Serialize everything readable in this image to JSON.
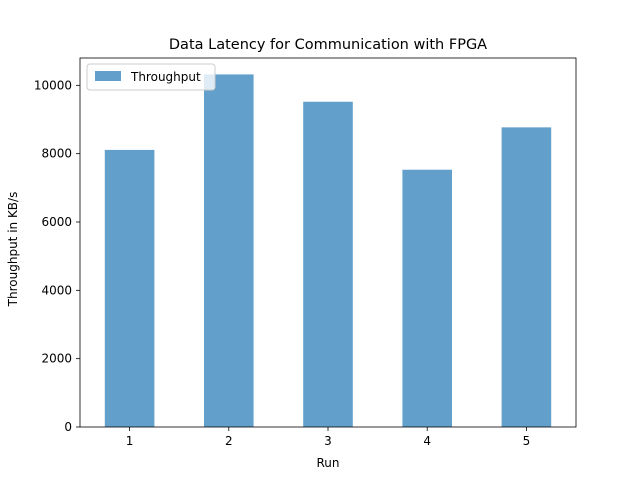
{
  "chart_data": {
    "type": "bar",
    "title": "Data Latency for Communication with FPGA",
    "xlabel": "Run",
    "ylabel": "Throughput in KB/s",
    "categories": [
      "1",
      "2",
      "3",
      "4",
      "5"
    ],
    "series": [
      {
        "name": "Throughput",
        "values": [
          8110,
          10320,
          9520,
          7530,
          8770
        ],
        "color": "#62a0cb"
      }
    ],
    "ylim": [
      0,
      10800
    ],
    "yticks": [
      0,
      2000,
      4000,
      6000,
      8000,
      10000
    ],
    "ytick_labels": [
      "0",
      "2000",
      "4000",
      "6000",
      "8000",
      "10000"
    ],
    "grid": false,
    "legend": "top-left"
  }
}
